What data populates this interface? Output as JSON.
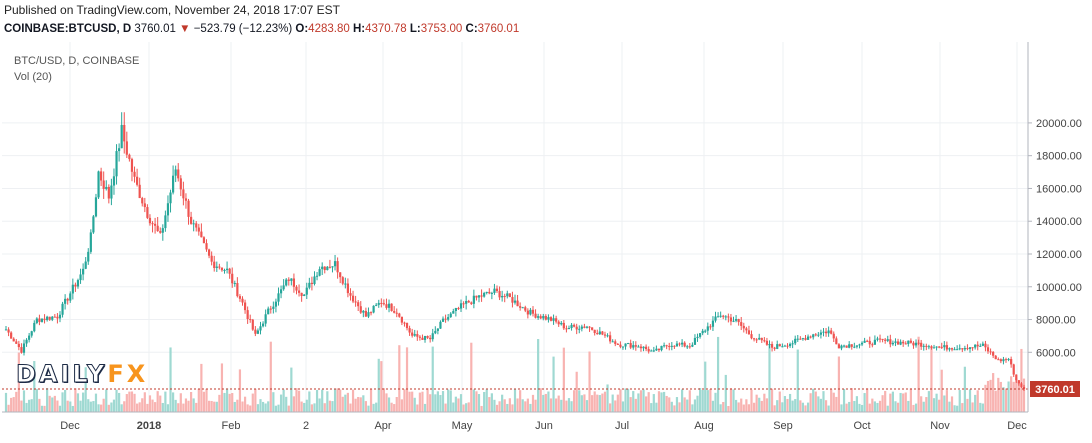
{
  "header": {
    "published": "Published on TradingView.com, November 24, 2018 17:07 EST",
    "symbol": "COINBASE:BTCUSD, D",
    "last": "3760.01",
    "change": "−523.79 (−12.23%)",
    "o_label": "O:",
    "o_value": "4283.80",
    "h_label": "H:",
    "h_value": "4370.78",
    "l_label": "L:",
    "l_value": "3753.00",
    "c_label": "C:",
    "c_value": "3760.01"
  },
  "overlay": {
    "series_title": "BTC/USD, D, COINBASE",
    "volume_title": "Vol (20)",
    "price_tag": "3760.01"
  },
  "logo": {
    "part1": "DAILY",
    "part2": "FX"
  },
  "colors": {
    "up": "#26a69a",
    "down": "#ef5350",
    "vol_up": "#9fd9d2",
    "vol_down": "#f8b3b1",
    "grid": "#eef0f3",
    "last": "#c0392b"
  },
  "chart_data": {
    "type": "candlestick",
    "symbol": "BTC/USD",
    "ylim": [
      3500,
      20500
    ],
    "y_ticks": [
      "20000.00",
      "18000.00",
      "16000.00",
      "14000.00",
      "12000.00",
      "10000.00",
      "8000.00",
      "6000.00"
    ],
    "x_ticks": [
      "Dec",
      "2018",
      "Feb",
      "2",
      "Apr",
      "May",
      "Jun",
      "Jul",
      "Aug",
      "Sep",
      "Oct",
      "Nov",
      "Dec"
    ],
    "last_price": 3760.01,
    "anchors": [
      {
        "d": 0,
        "v": 7400
      },
      {
        "d": 6,
        "v": 6100
      },
      {
        "d": 12,
        "v": 8000
      },
      {
        "d": 20,
        "v": 8200
      },
      {
        "d": 26,
        "v": 9900
      },
      {
        "d": 30,
        "v": 11000
      },
      {
        "d": 33,
        "v": 13000
      },
      {
        "d": 36,
        "v": 17000
      },
      {
        "d": 40,
        "v": 15500
      },
      {
        "d": 45,
        "v": 19500
      },
      {
        "d": 50,
        "v": 16500
      },
      {
        "d": 55,
        "v": 14500
      },
      {
        "d": 60,
        "v": 13000
      },
      {
        "d": 66,
        "v": 17200
      },
      {
        "d": 72,
        "v": 14000
      },
      {
        "d": 80,
        "v": 11500
      },
      {
        "d": 86,
        "v": 11000
      },
      {
        "d": 92,
        "v": 9000
      },
      {
        "d": 97,
        "v": 7000
      },
      {
        "d": 102,
        "v": 8500
      },
      {
        "d": 110,
        "v": 10500
      },
      {
        "d": 116,
        "v": 9500
      },
      {
        "d": 122,
        "v": 11200
      },
      {
        "d": 128,
        "v": 11400
      },
      {
        "d": 134,
        "v": 9500
      },
      {
        "d": 140,
        "v": 8200
      },
      {
        "d": 146,
        "v": 9100
      },
      {
        "d": 152,
        "v": 8500
      },
      {
        "d": 158,
        "v": 7000
      },
      {
        "d": 165,
        "v": 6800
      },
      {
        "d": 170,
        "v": 7900
      },
      {
        "d": 178,
        "v": 8900
      },
      {
        "d": 184,
        "v": 9400
      },
      {
        "d": 190,
        "v": 9700
      },
      {
        "d": 196,
        "v": 9300
      },
      {
        "d": 204,
        "v": 8400
      },
      {
        "d": 212,
        "v": 8000
      },
      {
        "d": 218,
        "v": 7500
      },
      {
        "d": 226,
        "v": 7600
      },
      {
        "d": 232,
        "v": 7100
      },
      {
        "d": 238,
        "v": 6500
      },
      {
        "d": 246,
        "v": 6400
      },
      {
        "d": 252,
        "v": 6000
      },
      {
        "d": 258,
        "v": 6500
      },
      {
        "d": 266,
        "v": 6400
      },
      {
        "d": 272,
        "v": 7400
      },
      {
        "d": 278,
        "v": 8300
      },
      {
        "d": 284,
        "v": 7900
      },
      {
        "d": 290,
        "v": 7000
      },
      {
        "d": 298,
        "v": 6300
      },
      {
        "d": 306,
        "v": 6600
      },
      {
        "d": 314,
        "v": 7100
      },
      {
        "d": 320,
        "v": 7300
      },
      {
        "d": 324,
        "v": 6400
      },
      {
        "d": 332,
        "v": 6500
      },
      {
        "d": 340,
        "v": 6700
      },
      {
        "d": 348,
        "v": 6600
      },
      {
        "d": 356,
        "v": 6500
      },
      {
        "d": 364,
        "v": 6300
      },
      {
        "d": 372,
        "v": 6300
      },
      {
        "d": 380,
        "v": 6400
      },
      {
        "d": 386,
        "v": 5500
      },
      {
        "d": 390,
        "v": 5600
      },
      {
        "d": 393,
        "v": 4300
      },
      {
        "d": 396,
        "v": 3760
      }
    ]
  }
}
